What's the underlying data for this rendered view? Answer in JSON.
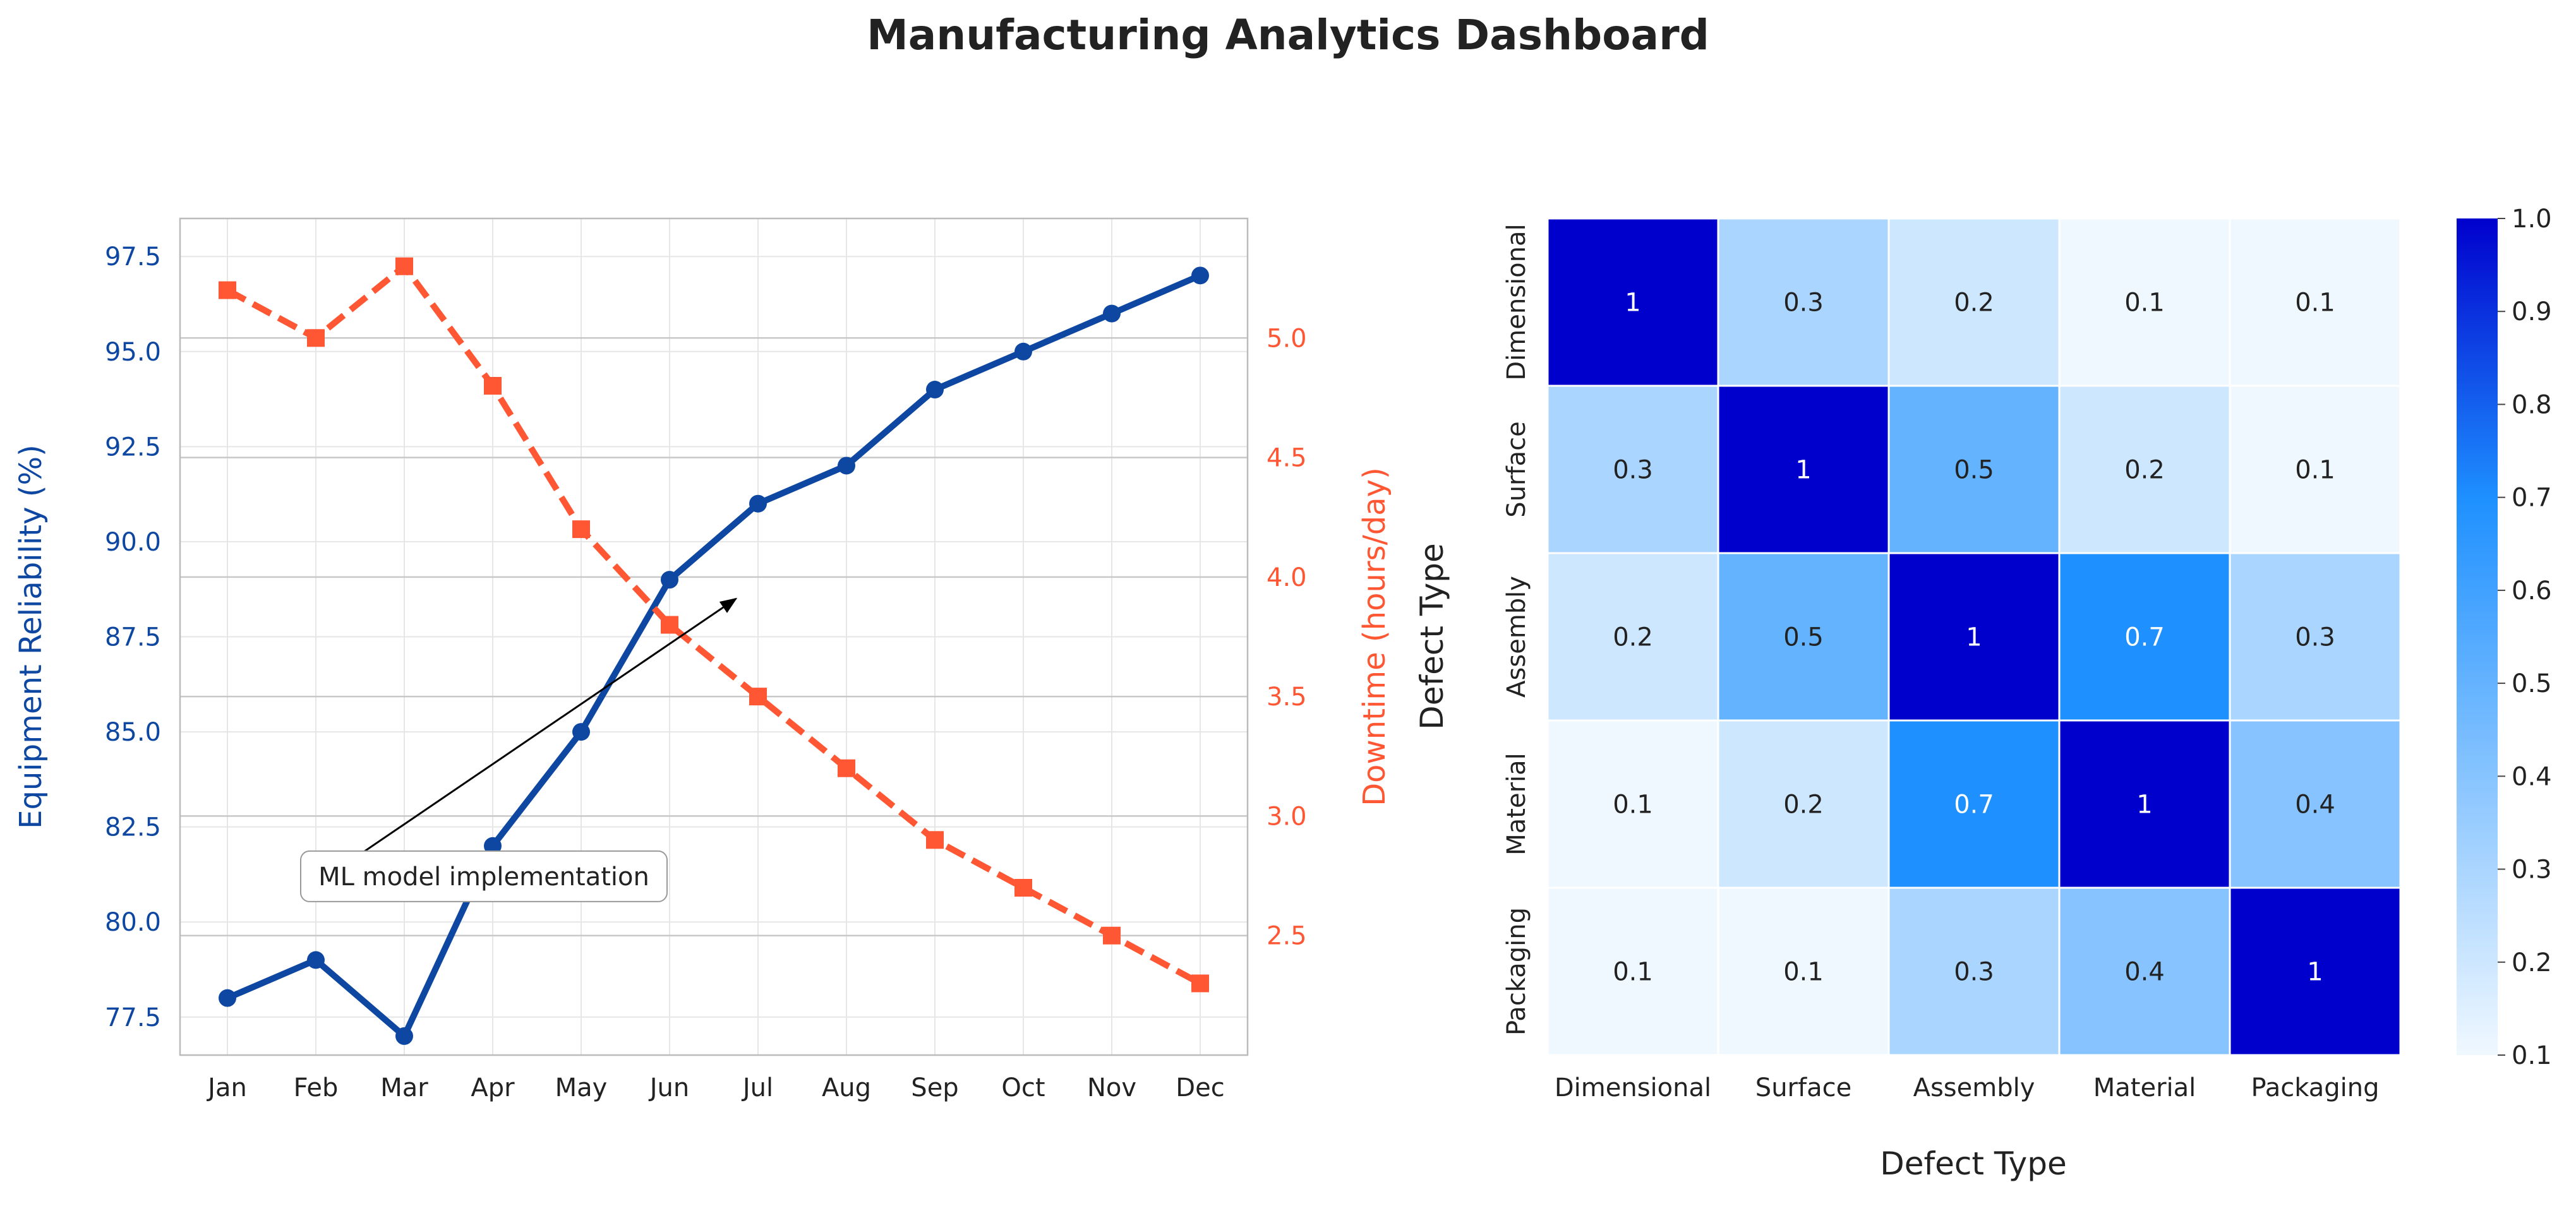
{
  "title": "Manufacturing Analytics Dashboard",
  "colors": {
    "reliability": "#0D47A1",
    "downtime": "#FF5733",
    "heat_low": "#F0F8FF",
    "heat_mid": "#1E90FF",
    "heat_high": "#0000CD",
    "grid": "#E6E6E6",
    "ref_line": "#C8C8C8",
    "text": "#222222"
  },
  "chart_data": [
    {
      "type": "line",
      "title": "",
      "categories": [
        "Jan",
        "Feb",
        "Mar",
        "Apr",
        "May",
        "Jun",
        "Jul",
        "Aug",
        "Sep",
        "Oct",
        "Nov",
        "Dec"
      ],
      "series": [
        {
          "name": "Equipment Reliability (%)",
          "axis": "left",
          "marker": "circle",
          "line_style": "solid",
          "values": [
            78,
            79,
            77,
            82,
            85,
            89,
            91,
            92,
            94,
            95,
            96,
            97
          ]
        },
        {
          "name": "Downtime (hours/day)",
          "axis": "right",
          "marker": "square",
          "line_style": "dashed",
          "values": [
            5.2,
            5.0,
            5.3,
            4.8,
            4.2,
            3.8,
            3.5,
            3.2,
            2.9,
            2.7,
            2.5,
            2.3
          ]
        }
      ],
      "ylabel": "Equipment Reliability (%)",
      "ylim": [
        76.5,
        98.5
      ],
      "yticks": [
        "77.5",
        "80.0",
        "82.5",
        "85.0",
        "87.5",
        "90.0",
        "92.5",
        "95.0",
        "97.5"
      ],
      "y2label": "Downtime (hours/day)",
      "y2lim": [
        2.0,
        5.5
      ],
      "y2ticks": [
        "2.5",
        "3.0",
        "3.5",
        "4.0",
        "4.5",
        "5.0"
      ],
      "grid": true,
      "annotation": {
        "text": "ML model implementation",
        "text_at": {
          "month_index": 2.9,
          "reliability": 81.2
        },
        "arrow_to": {
          "month_index": 5.75,
          "reliability": 88.5
        }
      }
    },
    {
      "type": "heatmap",
      "title": "",
      "x_categories": [
        "Dimensional",
        "Surface",
        "Assembly",
        "Material",
        "Packaging"
      ],
      "y_categories": [
        "Dimensional",
        "Surface",
        "Assembly",
        "Material",
        "Packaging"
      ],
      "values": [
        [
          1,
          0.3,
          0.2,
          0.1,
          0.1
        ],
        [
          0.3,
          1,
          0.5,
          0.2,
          0.1
        ],
        [
          0.2,
          0.5,
          1,
          0.7,
          0.3
        ],
        [
          0.1,
          0.2,
          0.7,
          1,
          0.4
        ],
        [
          0.1,
          0.1,
          0.3,
          0.4,
          1
        ]
      ],
      "xlabel": "Defect Type",
      "ylabel": "Defect Type",
      "colorbar": {
        "range": [
          0.1,
          1.0
        ],
        "ticks": [
          "0.1",
          "0.2",
          "0.3",
          "0.4",
          "0.5",
          "0.6",
          "0.7",
          "0.8",
          "0.9",
          "1.0"
        ]
      }
    }
  ]
}
